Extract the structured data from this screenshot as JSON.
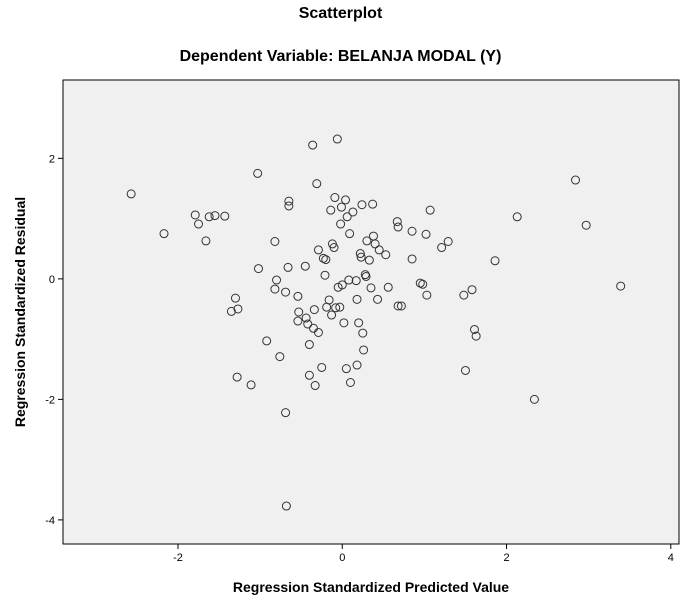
{
  "chart_data": {
    "type": "scatter",
    "title": "Scatterplot",
    "subtitle": "Dependent Variable: BELANJA MODAL (Y)",
    "xlabel": "Regression Standardized Predicted Value",
    "ylabel": "Regression Standardized Residual",
    "xlim": [
      -3.4,
      4.1
    ],
    "ylim": [
      -4.4,
      3.3
    ],
    "x_ticks": [
      -2,
      0,
      2,
      4
    ],
    "y_ticks": [
      -4,
      -2,
      0,
      2
    ],
    "grid": false,
    "legend": "none",
    "colors": {
      "plot_background": "#f0f0f0",
      "marker": "#333333"
    },
    "points": [
      {
        "x": -2.57,
        "y": 1.41
      },
      {
        "x": -2.17,
        "y": 0.75
      },
      {
        "x": -1.79,
        "y": 1.06
      },
      {
        "x": -1.75,
        "y": 0.91
      },
      {
        "x": -1.66,
        "y": 0.63
      },
      {
        "x": -1.62,
        "y": 1.03
      },
      {
        "x": -1.55,
        "y": 1.05
      },
      {
        "x": -1.43,
        "y": 1.04
      },
      {
        "x": -1.35,
        "y": -0.54
      },
      {
        "x": -1.3,
        "y": -0.32
      },
      {
        "x": -1.27,
        "y": -0.5
      },
      {
        "x": -1.28,
        "y": -1.63
      },
      {
        "x": -1.11,
        "y": -1.76
      },
      {
        "x": -1.03,
        "y": 1.75
      },
      {
        "x": -1.02,
        "y": 0.17
      },
      {
        "x": -0.92,
        "y": -1.03
      },
      {
        "x": -0.82,
        "y": 0.62
      },
      {
        "x": -0.8,
        "y": -0.02
      },
      {
        "x": -0.82,
        "y": -0.17
      },
      {
        "x": -0.76,
        "y": -1.29
      },
      {
        "x": -0.69,
        "y": -0.22
      },
      {
        "x": -0.69,
        "y": -2.22
      },
      {
        "x": -0.68,
        "y": -3.77
      },
      {
        "x": -0.66,
        "y": 0.19
      },
      {
        "x": -0.65,
        "y": 1.29
      },
      {
        "x": -0.65,
        "y": 1.21
      },
      {
        "x": -0.54,
        "y": -0.29
      },
      {
        "x": -0.54,
        "y": -0.7
      },
      {
        "x": -0.53,
        "y": -0.55
      },
      {
        "x": -0.45,
        "y": 0.21
      },
      {
        "x": -0.44,
        "y": -0.65
      },
      {
        "x": -0.42,
        "y": -0.75
      },
      {
        "x": -0.4,
        "y": -1.09
      },
      {
        "x": -0.4,
        "y": -1.6
      },
      {
        "x": -0.36,
        "y": 2.22
      },
      {
        "x": -0.35,
        "y": -0.82
      },
      {
        "x": -0.34,
        "y": -0.51
      },
      {
        "x": -0.33,
        "y": -1.77
      },
      {
        "x": -0.31,
        "y": 1.58
      },
      {
        "x": -0.29,
        "y": 0.48
      },
      {
        "x": -0.29,
        "y": -0.89
      },
      {
        "x": -0.25,
        "y": -1.47
      },
      {
        "x": -0.23,
        "y": 0.34
      },
      {
        "x": -0.21,
        "y": 0.06
      },
      {
        "x": -0.2,
        "y": 0.32
      },
      {
        "x": -0.19,
        "y": -0.47
      },
      {
        "x": -0.16,
        "y": -0.35
      },
      {
        "x": -0.14,
        "y": 1.14
      },
      {
        "x": -0.13,
        "y": -0.6
      },
      {
        "x": -0.12,
        "y": 0.58
      },
      {
        "x": -0.1,
        "y": 0.52
      },
      {
        "x": -0.09,
        "y": 1.35
      },
      {
        "x": -0.08,
        "y": -0.48
      },
      {
        "x": -0.06,
        "y": 2.32
      },
      {
        "x": -0.05,
        "y": -0.14
      },
      {
        "x": -0.03,
        "y": -0.47
      },
      {
        "x": -0.01,
        "y": 1.19
      },
      {
        "x": -0.02,
        "y": 0.91
      },
      {
        "x": 0.0,
        "y": -0.1
      },
      {
        "x": 0.02,
        "y": -0.73
      },
      {
        "x": 0.04,
        "y": 1.31
      },
      {
        "x": 0.05,
        "y": -1.49
      },
      {
        "x": 0.06,
        "y": 1.03
      },
      {
        "x": 0.08,
        "y": -0.02
      },
      {
        "x": 0.09,
        "y": 0.75
      },
      {
        "x": 0.1,
        "y": -1.72
      },
      {
        "x": 0.13,
        "y": 1.11
      },
      {
        "x": 0.17,
        "y": -0.03
      },
      {
        "x": 0.18,
        "y": -0.34
      },
      {
        "x": 0.18,
        "y": -1.43
      },
      {
        "x": 0.2,
        "y": -0.73
      },
      {
        "x": 0.22,
        "y": 0.42
      },
      {
        "x": 0.23,
        "y": 0.36
      },
      {
        "x": 0.24,
        "y": 1.23
      },
      {
        "x": 0.25,
        "y": -0.9
      },
      {
        "x": 0.26,
        "y": -1.18
      },
      {
        "x": 0.28,
        "y": 0.07
      },
      {
        "x": 0.29,
        "y": 0.04
      },
      {
        "x": 0.3,
        "y": 0.63
      },
      {
        "x": 0.33,
        "y": 0.31
      },
      {
        "x": 0.35,
        "y": -0.15
      },
      {
        "x": 0.37,
        "y": 1.24
      },
      {
        "x": 0.38,
        "y": 0.71
      },
      {
        "x": 0.4,
        "y": 0.58
      },
      {
        "x": 0.43,
        "y": -0.34
      },
      {
        "x": 0.45,
        "y": 0.48
      },
      {
        "x": 0.53,
        "y": 0.4
      },
      {
        "x": 0.56,
        "y": -0.14
      },
      {
        "x": 0.67,
        "y": 0.95
      },
      {
        "x": 0.68,
        "y": 0.86
      },
      {
        "x": 0.68,
        "y": -0.45
      },
      {
        "x": 0.72,
        "y": -0.45
      },
      {
        "x": 0.85,
        "y": 0.33
      },
      {
        "x": 0.85,
        "y": 0.79
      },
      {
        "x": 0.95,
        "y": -0.07
      },
      {
        "x": 0.98,
        "y": -0.09
      },
      {
        "x": 1.02,
        "y": 0.74
      },
      {
        "x": 1.03,
        "y": -0.27
      },
      {
        "x": 1.07,
        "y": 1.14
      },
      {
        "x": 1.21,
        "y": 0.52
      },
      {
        "x": 1.29,
        "y": 0.62
      },
      {
        "x": 1.48,
        "y": -0.27
      },
      {
        "x": 1.5,
        "y": -1.52
      },
      {
        "x": 1.58,
        "y": -0.18
      },
      {
        "x": 1.61,
        "y": -0.84
      },
      {
        "x": 1.63,
        "y": -0.95
      },
      {
        "x": 1.86,
        "y": 0.3
      },
      {
        "x": 2.13,
        "y": 1.03
      },
      {
        "x": 2.34,
        "y": -2.0
      },
      {
        "x": 2.84,
        "y": 1.64
      },
      {
        "x": 2.97,
        "y": 0.89
      },
      {
        "x": 3.39,
        "y": -0.12
      }
    ]
  }
}
